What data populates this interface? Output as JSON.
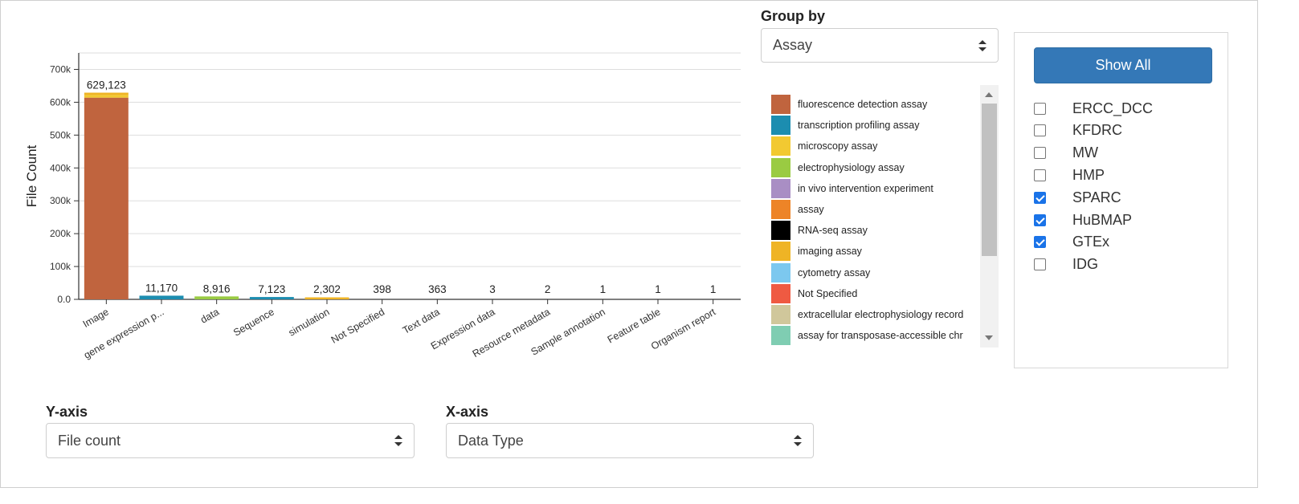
{
  "chart_data": {
    "type": "bar",
    "ylabel": "File Count",
    "xlabel": "",
    "ylim": [
      0,
      750000
    ],
    "yticks": [
      "0.0",
      "100k",
      "200k",
      "300k",
      "400k",
      "500k",
      "600k",
      "700k"
    ],
    "yticks_values": [
      0,
      100000,
      200000,
      300000,
      400000,
      500000,
      600000,
      700000
    ],
    "grid": true,
    "categories": [
      "Image",
      "gene expression p...",
      "data",
      "Sequence",
      "simulation",
      "Not Specified",
      "Text data",
      "Expression data",
      "Resource metadata",
      "Sample annotation",
      "Feature table",
      "Organism report"
    ],
    "totals": [
      629123,
      11170,
      8916,
      7123,
      2302,
      398,
      363,
      3,
      2,
      1,
      1,
      1
    ],
    "total_labels": [
      "629,123",
      "11,170",
      "8,916",
      "7,123",
      "2,302",
      "398",
      "363",
      "3",
      "2",
      "1",
      "1",
      "1"
    ],
    "series": [
      {
        "name": "fluorescence detection assay",
        "color": "#c0643e",
        "values": [
          614000,
          0,
          0,
          0,
          0,
          0,
          0,
          0,
          0,
          0,
          0,
          0
        ]
      },
      {
        "name": "transcription profiling assay",
        "color": "#1c8db0",
        "values": [
          0,
          11170,
          0,
          7123,
          0,
          0,
          0,
          0,
          0,
          0,
          0,
          0
        ]
      },
      {
        "name": "microscopy assay",
        "color": "#f2c931",
        "values": [
          8000,
          0,
          0,
          0,
          0,
          0,
          0,
          0,
          0,
          0,
          0,
          0
        ]
      },
      {
        "name": "electrophysiology assay",
        "color": "#9acb42",
        "values": [
          0,
          0,
          8916,
          0,
          0,
          0,
          0,
          0,
          0,
          0,
          0,
          0
        ]
      },
      {
        "name": "imaging assay",
        "color": "#efb425",
        "values": [
          7123,
          0,
          0,
          0,
          2302,
          0,
          0,
          0,
          0,
          0,
          0,
          0
        ]
      }
    ]
  },
  "legend": {
    "items": [
      {
        "label": "fluorescence detection assay",
        "color": "#c0643e"
      },
      {
        "label": "transcription profiling assay",
        "color": "#1c8db0"
      },
      {
        "label": "microscopy assay",
        "color": "#f2c931"
      },
      {
        "label": "electrophysiology assay",
        "color": "#9acb42"
      },
      {
        "label": "in vivo intervention experiment",
        "color": "#a98ec4"
      },
      {
        "label": "assay",
        "color": "#ed8427"
      },
      {
        "label": "RNA-seq assay",
        "color": "#000000"
      },
      {
        "label": "imaging assay",
        "color": "#efb425"
      },
      {
        "label": "cytometry assay",
        "color": "#7cc8ef"
      },
      {
        "label": "Not Specified",
        "color": "#ef5a42"
      },
      {
        "label": "extracellular electrophysiology record",
        "color": "#d0c79b"
      },
      {
        "label": "assay for transposase-accessible chr",
        "color": "#7fcdb2"
      }
    ]
  },
  "controls": {
    "group_by_label": "Group by",
    "group_by_value": "Assay",
    "y_axis_label": "Y-axis",
    "y_axis_value": "File count",
    "x_axis_label": "X-axis",
    "x_axis_value": "Data Type"
  },
  "filters": {
    "show_all_label": "Show All",
    "items": [
      {
        "label": "ERCC_DCC",
        "checked": false
      },
      {
        "label": "KFDRC",
        "checked": false
      },
      {
        "label": "MW",
        "checked": false
      },
      {
        "label": "HMP",
        "checked": false
      },
      {
        "label": "SPARC",
        "checked": true
      },
      {
        "label": "HuBMAP",
        "checked": true
      },
      {
        "label": "GTEx",
        "checked": true
      },
      {
        "label": "IDG",
        "checked": false
      }
    ]
  }
}
